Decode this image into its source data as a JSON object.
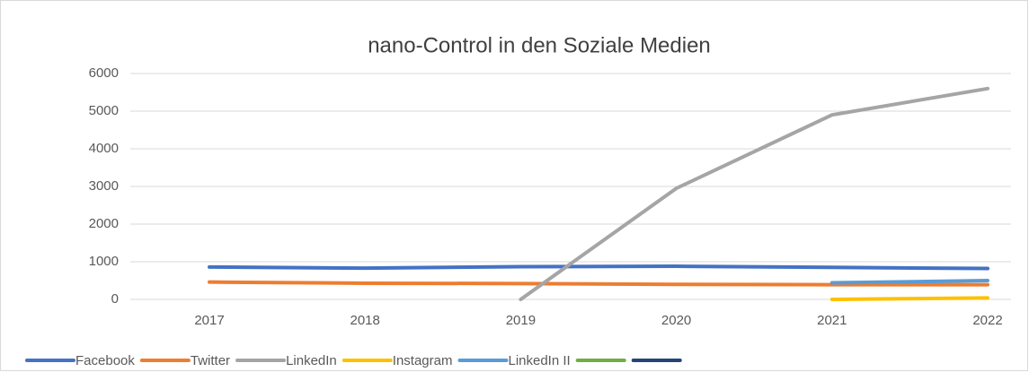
{
  "chart_data": {
    "type": "line",
    "title": "nano-Control in den Soziale Medien",
    "categories": [
      "2017",
      "2018",
      "2019",
      "2020",
      "2021",
      "2022"
    ],
    "series": [
      {
        "name": "Facebook",
        "color": "#4472c4",
        "values": [
          860,
          830,
          870,
          880,
          850,
          820
        ]
      },
      {
        "name": "Twitter",
        "color": "#ed7d31",
        "values": [
          460,
          430,
          420,
          400,
          390,
          390
        ]
      },
      {
        "name": "LinkedIn",
        "color": "#a5a5a5",
        "values": [
          null,
          null,
          0,
          2950,
          4900,
          5600
        ]
      },
      {
        "name": "Instagram",
        "color": "#ffc000",
        "values": [
          null,
          null,
          null,
          null,
          0,
          40
        ]
      },
      {
        "name": "LinkedIn II",
        "color": "#5b9bd5",
        "values": [
          null,
          null,
          null,
          null,
          440,
          500
        ]
      },
      {
        "name": null,
        "color": "#70ad47",
        "values": [
          null,
          null,
          null,
          null,
          null,
          null
        ]
      },
      {
        "name": null,
        "color": "#264478",
        "values": [
          null,
          null,
          null,
          null,
          null,
          null
        ]
      }
    ],
    "ylim": [
      0,
      6000
    ],
    "yticks": [
      0,
      1000,
      2000,
      3000,
      4000,
      5000,
      6000
    ],
    "grid": true,
    "legend": "bottom"
  }
}
